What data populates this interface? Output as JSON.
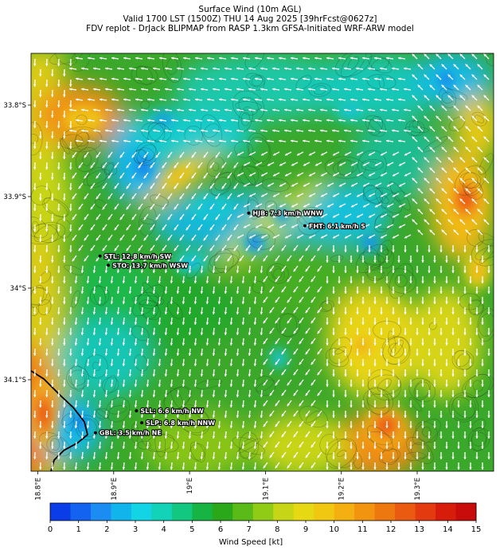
{
  "title": {
    "line1": "Surface Wind (10m AGL)",
    "line2": "Valid 1700 LST (1500Z) THU 14 Aug 2025 [39hrFcst@0627z]",
    "line3": "FDV replot - DrJack BLIPMAP from RASP 1.3km GFSA-Initiated WRF-ARW model"
  },
  "map": {
    "lat_labels": [
      "33.8°S",
      "33.9°S",
      "34°S",
      "34.1°S"
    ],
    "lon_labels": [
      "18.8°E",
      "18.9°E",
      "19°E",
      "19.1°E",
      "19.2°E",
      "19.3°E"
    ]
  },
  "stations": [
    {
      "label": "HJB: 7.3 km/h WNW",
      "lon": 19.078,
      "lat": -33.918
    },
    {
      "label": "FHT: 6.1 km/h S",
      "lon": 19.152,
      "lat": -33.932
    },
    {
      "label": "STL: 12.8 km/h SW",
      "lon": 18.882,
      "lat": -33.965
    },
    {
      "label": "STO: 13.7 km/h WSW",
      "lon": 18.893,
      "lat": -33.975
    },
    {
      "label": "SLL: 6.6 km/h NW",
      "lon": 18.93,
      "lat": -34.134
    },
    {
      "label": "SLP: 6.8 km/h NNW",
      "lon": 18.937,
      "lat": -34.147
    },
    {
      "label": "GBL: 3.5 km/h NE",
      "lon": 18.876,
      "lat": -34.158
    }
  ],
  "colorbar": {
    "tick_labels": [
      "0",
      "1",
      "2",
      "3",
      "4",
      "5",
      "6",
      "7",
      "8",
      "9",
      "10",
      "11",
      "12",
      "13",
      "14",
      "15"
    ],
    "label": "Wind Speed [kt]",
    "colors": [
      "#0a3ce8",
      "#1462f0",
      "#1a8cf2",
      "#12b4ec",
      "#12d4e4",
      "#12d2b8",
      "#12c880",
      "#16b442",
      "#2aa81a",
      "#5aba18",
      "#90cc16",
      "#c6d616",
      "#e6d812",
      "#f0c812",
      "#f4b010",
      "#f29410",
      "#ee7810",
      "#ea5a10",
      "#e43a10",
      "#d81c0c",
      "#c80c0c"
    ]
  }
}
